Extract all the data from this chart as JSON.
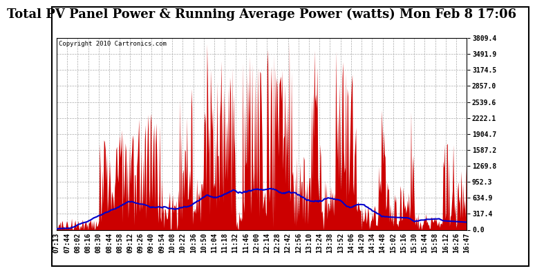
{
  "title": "Total PV Panel Power & Running Average Power (watts) Mon Feb 8 17:06",
  "copyright": "Copyright 2010 Cartronics.com",
  "background_color": "#ffffff",
  "bar_color": "#cc0000",
  "line_color": "#0000cc",
  "grid_color": "#aaaaaa",
  "ymax": 3809.4,
  "ymin": 0.0,
  "ytick_values": [
    0.0,
    317.4,
    634.9,
    952.3,
    1269.8,
    1587.2,
    1904.7,
    2222.1,
    2539.6,
    2857.0,
    3174.5,
    3491.9,
    3809.4
  ],
  "x_labels": [
    "07:13",
    "07:44",
    "08:02",
    "08:16",
    "08:30",
    "08:44",
    "08:58",
    "09:12",
    "09:26",
    "09:40",
    "09:54",
    "10:08",
    "10:22",
    "10:36",
    "10:50",
    "11:04",
    "11:18",
    "11:32",
    "11:46",
    "12:00",
    "12:14",
    "12:28",
    "12:42",
    "12:56",
    "13:10",
    "13:24",
    "13:38",
    "13:52",
    "14:06",
    "14:20",
    "14:34",
    "14:48",
    "15:02",
    "15:16",
    "15:30",
    "15:44",
    "15:58",
    "16:12",
    "16:26",
    "16:47"
  ],
  "title_fontsize": 13,
  "axis_fontsize": 7.0,
  "copyright_fontsize": 6.5
}
